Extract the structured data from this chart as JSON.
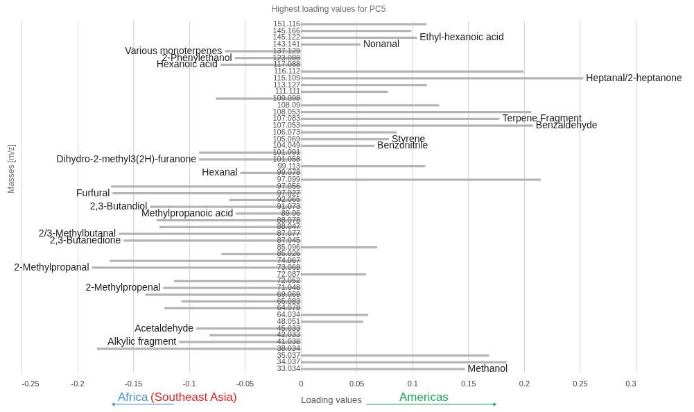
{
  "chart_data": {
    "type": "bar",
    "orientation": "horizontal",
    "title": "Highest loading values for PC5",
    "xlabel": "Loading values",
    "ylabel": "Masses [m/z]",
    "categories": [
      "151.116",
      "145.166",
      "145.122",
      "143.141",
      "137.129",
      "123.088",
      "117.088",
      "116.112",
      "115.109",
      "113.127",
      "111.111",
      "109.098",
      "108.09",
      "108.053",
      "107.083",
      "107.053",
      "106.073",
      "105.069",
      "104.049",
      "101.091",
      "101.058",
      "99.113",
      "99.078",
      "97.099",
      "97.056",
      "97.027",
      "92.065",
      "91.073",
      "89.06",
      "88.078",
      "88.047",
      "87.077",
      "87.045",
      "85.096",
      "85.026",
      "74.067",
      "73.068",
      "72.087",
      "72.052",
      "71.048",
      "69.069",
      "65.083",
      "64.078",
      "64.034",
      "48.051",
      "45.033",
      "42.033",
      "41.038",
      "38.034",
      "35.037",
      "34.037",
      "33.034"
    ],
    "series": [
      {
        "color": "#b4b4b4",
        "values": [
          0.1125,
          0.099,
          0.104,
          0.0535,
          -0.068,
          -0.059,
          -0.072,
          0.1995,
          0.253,
          0.113,
          0.078,
          -0.076,
          0.124,
          0.2065,
          0.178,
          0.208,
          0.086,
          0.079,
          0.066,
          -0.091,
          -0.091,
          0.1115,
          -0.054,
          0.215,
          -0.17,
          -0.1685,
          -0.064,
          -0.135,
          -0.058,
          -0.129,
          -0.1265,
          -0.163,
          -0.1585,
          0.0686,
          -0.071,
          -0.171,
          -0.187,
          0.0587,
          -0.1135,
          -0.123,
          -0.139,
          -0.1067,
          -0.122,
          0.0604,
          0.056,
          -0.0935,
          -0.0817,
          -0.109,
          -0.1824,
          0.1686,
          0.1844,
          0.147
        ]
      }
    ],
    "xlim": [
      -0.25,
      0.3
    ],
    "xticks": [
      -0.25,
      -0.2,
      -0.15,
      -0.1,
      -0.05,
      0,
      0.05,
      0.1,
      0.15,
      0.2,
      0.25,
      0.3
    ],
    "grid": "x",
    "annotations": [
      {
        "text": "Ethyl-hexanoic acid",
        "x": 0.104,
        "y": "145.122"
      },
      {
        "text": "Nonanal",
        "x": 0.0535,
        "y": "143.141"
      },
      {
        "text": "Various monoterpenes",
        "x": -0.068,
        "y": "137.129"
      },
      {
        "text": "2-Phenylethanol",
        "x": -0.059,
        "y": "123.088"
      },
      {
        "text": "Hexanoic acid",
        "x": -0.072,
        "y": "117.088"
      },
      {
        "text": "Heptanal/2-heptanone",
        "x": 0.253,
        "y": "115.109"
      },
      {
        "text": "Terpene Fragment",
        "x": 0.178,
        "y": "107.083"
      },
      {
        "text": "Benzaldehyde",
        "x": 0.208,
        "y": "107.053"
      },
      {
        "text": "Styrene",
        "x": 0.079,
        "y": "105.069"
      },
      {
        "text": "Benzonitrile",
        "x": 0.066,
        "y": "104.049"
      },
      {
        "text": "Dihydro-2-methyl3(2H)-furanone",
        "x": -0.091,
        "y": "101.058"
      },
      {
        "text": "Hexanal",
        "x": -0.054,
        "y": "99.078"
      },
      {
        "text": "Furfural",
        "x": -0.1685,
        "y": "97.027"
      },
      {
        "text": "2,3-Butandiol",
        "x": -0.135,
        "y": "91.073"
      },
      {
        "text": "Methylpropanoic acid",
        "x": -0.058,
        "y": "89.06"
      },
      {
        "text": "2/3-Methylbutanal",
        "x": -0.163,
        "y": "87.077"
      },
      {
        "text": "2,3-Butanedione",
        "x": -0.1585,
        "y": "87.045"
      },
      {
        "text": "2-Methylpropanal",
        "x": -0.187,
        "y": "73.068"
      },
      {
        "text": "2-Methylpropenal",
        "x": -0.123,
        "y": "71.048"
      },
      {
        "text": "Acetaldehyde",
        "x": -0.0935,
        "y": "45.033"
      },
      {
        "text": "Alkylic fragment",
        "x": -0.109,
        "y": "41.038"
      },
      {
        "text": "Methanol",
        "x": 0.147,
        "y": "33.034"
      },
      "Africa",
      "(Southeast Asia)",
      "Americas"
    ]
  }
}
